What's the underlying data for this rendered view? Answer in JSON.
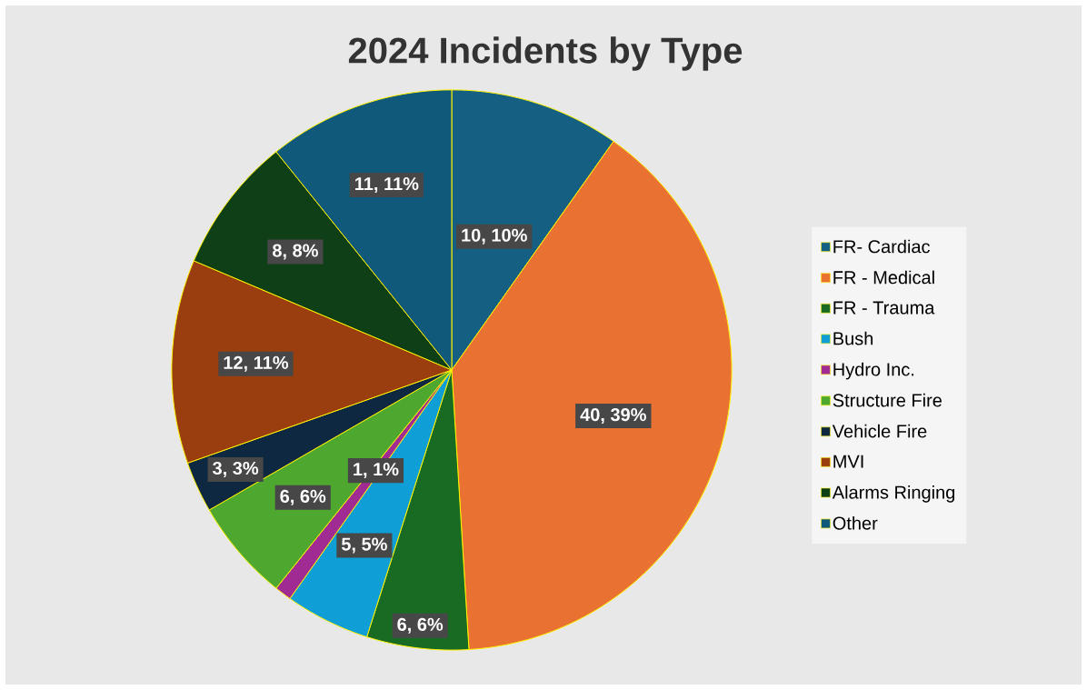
{
  "chart_data": {
    "type": "pie",
    "title": "2024 Incidents by Type",
    "categories": [
      "FR- Cardiac",
      "FR - Medical",
      "FR - Trauma",
      "Bush",
      "Hydro Inc.",
      "Structure Fire",
      "Vehicle Fire",
      "MVI",
      "Alarms Ringing",
      "Other"
    ],
    "values": [
      10,
      40,
      6,
      5,
      1,
      6,
      3,
      12,
      8,
      11
    ],
    "value_labels": [
      "10, 10%",
      "40, 39%",
      "6, 6%",
      "5, 5%",
      "1, 1%",
      "6, 6%",
      "3, 3%",
      "12, 11%",
      "8, 8%",
      "11, 11%"
    ],
    "colors": [
      "#156082",
      "#e97132",
      "#196b24",
      "#0f9ed5",
      "#a02b93",
      "#4ea72e",
      "#0e2841",
      "#9a3e0f",
      "#0f3f16",
      "#10597b"
    ],
    "legend": "right"
  }
}
